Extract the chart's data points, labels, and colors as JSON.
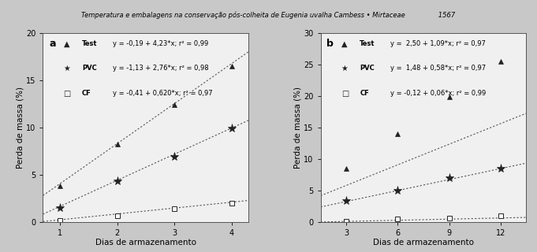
{
  "panel_a": {
    "label": "a",
    "x_ticks": [
      1,
      2,
      3,
      4
    ],
    "xlim": [
      0.7,
      4.3
    ],
    "ylim": [
      0,
      20
    ],
    "yticks": [
      0,
      5,
      10,
      15,
      20
    ],
    "xlabel": "Dias de armazenamento",
    "ylabel": "Perda de massa (%)",
    "series": [
      {
        "name": "Test",
        "marker": "^",
        "eq_label": "y = -0,19 + 4,23*x; r² = 0,99",
        "intercept": -0.19,
        "slope": 4.23,
        "x": [
          1,
          2,
          3,
          4
        ],
        "y": [
          3.8,
          8.2,
          12.4,
          16.5
        ]
      },
      {
        "name": "PVC",
        "marker": "*",
        "eq_label": "y = -1,13 + 2,76*x; r² = 0,98",
        "intercept": -1.13,
        "slope": 2.76,
        "x": [
          1,
          2,
          3,
          4
        ],
        "y": [
          1.5,
          4.3,
          6.9,
          9.9
        ]
      },
      {
        "name": "CF",
        "marker": "s",
        "eq_label": "y = -0,41 + 0,620*x; r² = 0,97",
        "intercept": -0.41,
        "slope": 0.62,
        "x": [
          1,
          2,
          3,
          4
        ],
        "y": [
          0.1,
          0.6,
          1.4,
          2.0
        ]
      }
    ]
  },
  "panel_b": {
    "label": "b",
    "x_ticks": [
      3,
      6,
      9,
      12
    ],
    "xlim": [
      1.5,
      13.5
    ],
    "ylim": [
      0,
      30
    ],
    "yticks": [
      0,
      5,
      10,
      15,
      20,
      25,
      30
    ],
    "xlabel": "Dias de armazenamento",
    "ylabel": "Perda de massa (%)",
    "series": [
      {
        "name": "Test",
        "marker": "^",
        "eq_label": "y =  2,50 + 1,09*x; r² = 0,97",
        "intercept": 2.5,
        "slope": 1.09,
        "x": [
          3,
          6,
          9,
          12
        ],
        "y": [
          8.5,
          14.0,
          19.8,
          25.5
        ]
      },
      {
        "name": "PVC",
        "marker": "*",
        "eq_label": "y =  1,48 + 0,58*x; r² = 0,97",
        "intercept": 1.48,
        "slope": 0.58,
        "x": [
          3,
          6,
          9,
          12
        ],
        "y": [
          3.3,
          4.9,
          6.9,
          8.5
        ]
      },
      {
        "name": "CF",
        "marker": "s",
        "eq_label": "y = -0,12 + 0,06*x; r² = 0,99",
        "intercept": -0.12,
        "slope": 0.06,
        "x": [
          3,
          6,
          9,
          12
        ],
        "y": [
          0.05,
          0.4,
          0.6,
          0.9
        ]
      }
    ]
  },
  "header_text": "Temperatura e embalagens na conservação pós-colheita de Eugenia uvalha Cambess • Mirtaceae                1567",
  "marker_size_tri": 5,
  "marker_size_star": 8,
  "marker_size_sq": 4,
  "line_color": "#555555",
  "marker_color": "#222222",
  "bg_color": "#f0f0f0",
  "fig_bg_color": "#c8c8c8",
  "legend_fontsize": 6.0,
  "tick_fontsize": 7,
  "label_fontsize": 7.5,
  "panel_label_fontsize": 9
}
